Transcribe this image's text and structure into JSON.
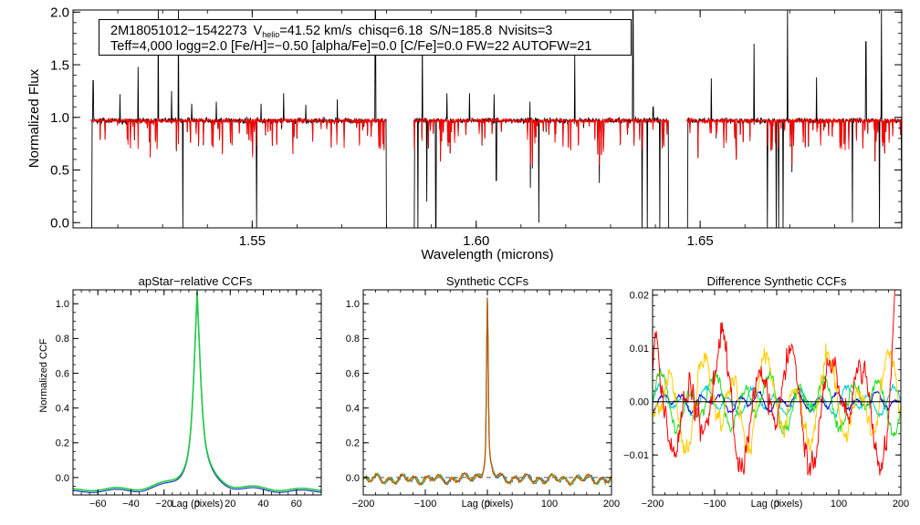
{
  "colors": {
    "observed": "#000000",
    "model": "#ff0000",
    "ccf_apstar": "#22cc44",
    "ccf_apstar_under": "#1a3fbf",
    "ccf_synth": "#b35a10",
    "zero_line": "#555555",
    "diff_lines": [
      "#000000",
      "#0000cc",
      "#00cccc",
      "#22dd22",
      "#ffcc00",
      "#ff0000"
    ]
  },
  "annotation": {
    "star_id": "2M18051012−1542273",
    "vhelio_label": "V",
    "vhelio_sub": "helio",
    "vhelio_value": "=41.52 km/s",
    "chisq": "chisq=6.18",
    "snr": "S/N=185.8",
    "nvisits": "Nvisits=3",
    "line2": "Teff=4,000 logg=2.0 [Fe/H]=−0.50 [alpha/Fe]=0.0 [C/Fe]=0.0 FW=22 AUTOFW=21"
  },
  "chart_data": [
    {
      "type": "line",
      "title": "",
      "xlabel": "Wavelength (microns)",
      "ylabel": "Normalized Flux",
      "xlim": [
        1.51,
        1.695
      ],
      "ylim": [
        -0.05,
        2.02
      ],
      "xtick_labels": [
        "1.55",
        "1.60",
        "1.65"
      ],
      "xticks": [
        1.55,
        1.6,
        1.65
      ],
      "ytick_labels": [
        "0.0",
        "0.5",
        "1.0",
        "1.5",
        "2.0"
      ],
      "yticks": [
        0.0,
        0.5,
        1.0,
        1.5,
        2.0
      ],
      "detector_chips": [
        [
          1.514,
          1.58
        ],
        [
          1.586,
          1.643
        ],
        [
          1.647,
          1.695
        ]
      ],
      "continuum_level": 0.97,
      "series": [
        {
          "name": "observed",
          "color": "#000000",
          "emission_spikes_x": [
            1.5145,
            1.5205,
            1.5245,
            1.529,
            1.532,
            1.5335,
            1.5365,
            1.542,
            1.552,
            1.557,
            1.562,
            1.569,
            1.5775,
            1.588,
            1.5935,
            1.5985,
            1.604,
            1.612,
            1.622,
            1.635,
            1.6395,
            1.643,
            1.6525,
            1.662,
            1.6695,
            1.676,
            1.687,
            1.6905
          ],
          "emission_spikes_y": [
            1.35,
            1.22,
            1.48,
            2.02,
            1.25,
            2.02,
            1.13,
            1.15,
            1.13,
            1.23,
            1.12,
            1.17,
            2.02,
            1.8,
            1.23,
            1.23,
            1.22,
            1.15,
            1.6,
            2.02,
            1.1,
            1.13,
            1.37,
            1.7,
            2.02,
            1.38,
            1.72,
            2.02
          ],
          "absorption_dips_x": [
            1.514,
            1.5345,
            1.551,
            1.58,
            1.587,
            1.589,
            1.591,
            1.6045,
            1.614,
            1.637,
            1.6382,
            1.641,
            1.643,
            1.665,
            1.667,
            1.6675,
            1.6685,
            1.684,
            1.69,
            1.695
          ],
          "absorption_dips_y": [
            -0.05,
            -0.05,
            -0.05,
            -0.05,
            -0.05,
            0.2,
            -0.05,
            0.4,
            0.0,
            -0.05,
            -0.05,
            -0.05,
            -0.05,
            -0.05,
            -0.05,
            -0.05,
            -0.05,
            0.0,
            -0.05,
            -0.05
          ]
        },
        {
          "name": "model",
          "color": "#ff0000",
          "note": "synthetic best-fit spectrum near continuum with absorption lines down to ~0.6"
        }
      ]
    },
    {
      "type": "line",
      "title": "apStar−relative CCFs",
      "xlabel": "Lag (pixels)",
      "ylabel": "Normalized CCF",
      "xlim": [
        -75,
        75
      ],
      "ylim": [
        -0.1,
        1.08
      ],
      "xtick_labels": [
        "−60",
        "−40",
        "−20",
        "0",
        "20",
        "40",
        "60"
      ],
      "xticks": [
        -60,
        -40,
        -20,
        0,
        20,
        40,
        60
      ],
      "ytick_labels": [
        "0.0",
        "0.2",
        "0.4",
        "0.6",
        "0.8",
        "1.0"
      ],
      "yticks": [
        0.0,
        0.2,
        0.4,
        0.6,
        0.8,
        1.0
      ],
      "peak": {
        "x": 0,
        "y": 0.99
      },
      "series": [
        {
          "name": "ccf_visits",
          "color": "#22cc44"
        },
        {
          "name": "ccf_underlay",
          "color": "#1a3fbf"
        }
      ]
    },
    {
      "type": "line",
      "title": "Synthetic CCFs",
      "xlabel": "Lag (pixels)",
      "ylabel": "",
      "xlim": [
        -200,
        200
      ],
      "ylim": [
        -0.1,
        1.08
      ],
      "xtick_labels": [
        "−200",
        "−100",
        "0",
        "100",
        "200"
      ],
      "xticks": [
        -200,
        -100,
        0,
        100,
        200
      ],
      "ytick_labels": [
        "0.0",
        "0.2",
        "0.4",
        "0.6",
        "0.8",
        "1.0"
      ],
      "yticks": [
        0.0,
        0.2,
        0.4,
        0.6,
        0.8,
        1.0
      ],
      "zero_line": 0.0,
      "peak": {
        "x": 0,
        "y": 1.0
      },
      "series": [
        {
          "name": "ccf_synthetic",
          "color": "#b35a10"
        }
      ]
    },
    {
      "type": "line",
      "title": "Difference Synthetic CCFs",
      "xlabel": "Lag (pixels)",
      "ylabel": "",
      "xlim": [
        -200,
        200
      ],
      "ylim": [
        -0.0175,
        0.021
      ],
      "xtick_labels": [
        "−200",
        "−100",
        "0",
        "100",
        "200"
      ],
      "xticks": [
        -200,
        -100,
        0,
        100,
        200
      ],
      "ytick_labels": [
        "0.02",
        "0.01",
        "0.00",
        "−0.01"
      ],
      "yticks": [
        0.02,
        0.01,
        0.0,
        -0.01
      ],
      "series": [
        {
          "name": "zero",
          "color": "#000000",
          "amplitude": 0.0
        },
        {
          "name": "blue",
          "color": "#0000cc",
          "amplitude": 0.002
        },
        {
          "name": "cyan",
          "color": "#00cccc",
          "amplitude": 0.003
        },
        {
          "name": "green",
          "color": "#22dd22",
          "amplitude": 0.006
        },
        {
          "name": "yellow",
          "color": "#ffcc00",
          "amplitude": 0.01
        },
        {
          "name": "red",
          "color": "#ff0000",
          "amplitude": 0.013
        }
      ]
    }
  ]
}
